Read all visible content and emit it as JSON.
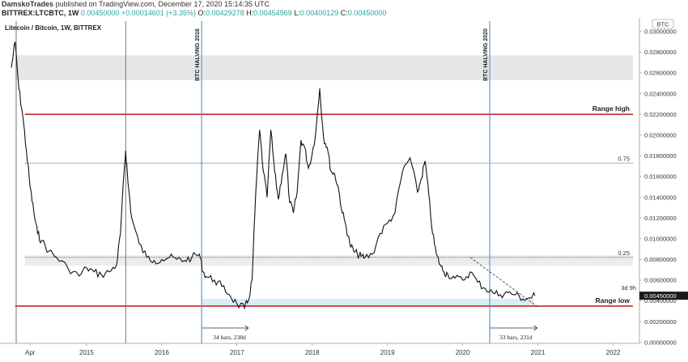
{
  "header": {
    "author": "DamskoTrades",
    "published": "published on TradingView.com, December 17, 2020 15:14:35 UTC",
    "symbol": "BITTREX:LTCBTC, 1W",
    "last": "0.00450000",
    "change": "+0.00014601 (+3.35%)",
    "o_label": "O:",
    "o_value": "0.00429278",
    "h_label": "H:",
    "h_value": "0.00454969",
    "l_label": "L:",
    "l_value": "0.00400129",
    "c_label": "C:",
    "c_value": "0.00450000"
  },
  "chart_data": {
    "type": "line",
    "title": "Litecoin / Bitcoin, 1W, BITTREX",
    "currency_label": "BTC",
    "y_axis_position": "right",
    "ylim": [
      -0.0001,
      0.031
    ],
    "y_ticks": [
      "0.03000000",
      "0.02800000",
      "0.02600000",
      "0.02400000",
      "0.02200000",
      "0.02000000",
      "0.01800000",
      "0.01600000",
      "0.01400000",
      "0.01200000",
      "0.01000000",
      "0.00800000",
      "0.00600000",
      "0.00400000",
      "0.00200000",
      "0.00000000"
    ],
    "x_ticks": [
      "Apr",
      "2015",
      "2016",
      "2017",
      "2018",
      "2019",
      "2020",
      "2021",
      "2022"
    ],
    "series": [
      {
        "x": [
          2014.0,
          2014.05,
          2014.1,
          2014.15,
          2014.2,
          2014.25,
          2014.3,
          2014.35,
          2014.4,
          2014.5,
          2014.6,
          2014.75,
          2014.9,
          2015.0,
          2015.1,
          2015.2,
          2015.3,
          2015.4,
          2015.45,
          2015.5,
          2015.52,
          2015.55,
          2015.6,
          2015.7,
          2015.8,
          2015.9,
          2016.0,
          2016.1,
          2016.2,
          2016.3,
          2016.4,
          2016.5,
          2016.55,
          2016.6,
          2016.7,
          2016.8,
          2016.9,
          2017.0,
          2017.1,
          2017.15,
          2017.2,
          2017.25,
          2017.3,
          2017.35,
          2017.4,
          2017.45,
          2017.5,
          2017.55,
          2017.6,
          2017.65,
          2017.7,
          2017.75,
          2017.8,
          2017.85,
          2017.9,
          2017.95,
          2018.0,
          2018.05,
          2018.1,
          2018.15,
          2018.2,
          2018.25,
          2018.3,
          2018.35,
          2018.4,
          2018.45,
          2018.5,
          2018.55,
          2018.6,
          2018.65,
          2018.7,
          2018.8,
          2018.9,
          2019.0,
          2019.1,
          2019.2,
          2019.3,
          2019.4,
          2019.45,
          2019.5,
          2019.55,
          2019.6,
          2019.65,
          2019.7,
          2019.75,
          2019.8,
          2019.9,
          2020.0,
          2020.1,
          2020.2,
          2020.3,
          2020.4,
          2020.5,
          2020.6,
          2020.7,
          2020.8,
          2020.9,
          2020.96
        ],
        "y": [
          0.0265,
          0.029,
          0.0245,
          0.022,
          0.0185,
          0.015,
          0.0125,
          0.0105,
          0.0098,
          0.0088,
          0.0082,
          0.0072,
          0.0064,
          0.0072,
          0.0068,
          0.0065,
          0.0068,
          0.0075,
          0.0105,
          0.0165,
          0.0185,
          0.0155,
          0.012,
          0.0095,
          0.0082,
          0.0079,
          0.008,
          0.0082,
          0.008,
          0.0079,
          0.0082,
          0.0085,
          0.0068,
          0.0063,
          0.006,
          0.0054,
          0.0046,
          0.0037,
          0.0033,
          0.004,
          0.006,
          0.0145,
          0.0205,
          0.0165,
          0.014,
          0.0205,
          0.0165,
          0.0138,
          0.0162,
          0.0182,
          0.0135,
          0.0125,
          0.0145,
          0.0195,
          0.0188,
          0.0168,
          0.0182,
          0.0205,
          0.0245,
          0.0198,
          0.0188,
          0.0165,
          0.0162,
          0.0148,
          0.0125,
          0.0112,
          0.0095,
          0.0088,
          0.0085,
          0.0083,
          0.0082,
          0.0085,
          0.0105,
          0.0115,
          0.0125,
          0.0165,
          0.0178,
          0.0145,
          0.0158,
          0.0175,
          0.0142,
          0.0105,
          0.0085,
          0.0075,
          0.0068,
          0.0066,
          0.0062,
          0.006,
          0.0068,
          0.0058,
          0.0052,
          0.0048,
          0.0046,
          0.0048,
          0.0046,
          0.0042,
          0.0043,
          0.0045
        ]
      }
    ],
    "annotations": {
      "range_high": "Range high",
      "range_low": "Range low",
      "fib_75": "0.75",
      "fib_25": "0.25",
      "halving_2016": "BTC HALVING 2016",
      "halving_2020": "BTC HALVING 2020",
      "bars_2016": "34 bars, 238d",
      "bars_2020": "33 bars, 231d",
      "countdown": "3d 9h",
      "price_tag": "0.00450000"
    },
    "levels": {
      "range_high": 0.022,
      "range_low": 0.0035,
      "fib_75": 0.0173,
      "fib_25": 0.0082,
      "zone_top": [
        0.0253,
        0.0277
      ],
      "halving_2016": 2016.53,
      "halving_2020": 2020.36
    },
    "grid": false,
    "colors": {
      "range_line": "#c62828",
      "halving_line": "#5b9bd5",
      "price_line": "#111111",
      "zone_fill": "#e6e6e6",
      "fib_line": "#888888",
      "low_band": "#dcecf7",
      "price_tag_bg": "#1a1a1a"
    }
  }
}
